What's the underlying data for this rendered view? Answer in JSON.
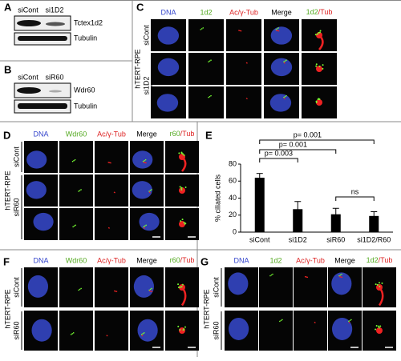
{
  "panels": {
    "A": {
      "label": "A",
      "lanes": [
        "siCont",
        "si1D2"
      ],
      "bands": [
        "Tctex1d2",
        "Tubulin"
      ]
    },
    "B": {
      "label": "B",
      "lanes": [
        "siCont",
        "siR60"
      ],
      "bands": [
        "Wdr60",
        "Tubulin"
      ]
    },
    "C": {
      "label": "C",
      "cell_line": "hTERT-RPE",
      "columns": [
        "DNA",
        "1d2",
        "Ac/γ-Tub",
        "Merge"
      ],
      "overlay": [
        "1d2",
        "/Tub"
      ],
      "rows": [
        "siCont",
        "si1D2"
      ]
    },
    "D": {
      "label": "D",
      "cell_line": "hTERT-RPE",
      "columns": [
        "DNA",
        "Wdr60",
        "Ac/γ-Tub",
        "Merge"
      ],
      "overlay": [
        "r60",
        "/Tub"
      ],
      "rows": [
        "siCont",
        "siR60"
      ]
    },
    "F": {
      "label": "F",
      "cell_line": "hTERT-RPE",
      "columns": [
        "DNA",
        "Wdr60",
        "Ac/γ-Tub",
        "Merge"
      ],
      "overlay": [
        "r60",
        "/Tub"
      ],
      "rows": [
        "siCont",
        "siR60"
      ]
    },
    "G": {
      "label": "G",
      "cell_line": "hTERT-RPE",
      "columns": [
        "DNA",
        "1d2",
        "Ac/γ-Tub",
        "Merge"
      ],
      "overlay": [
        "1d2",
        "/Tub"
      ],
      "rows": [
        "siCont",
        "siR60"
      ]
    }
  },
  "chart_data": {
    "type": "bar",
    "label": "E",
    "y_label": "% ciliated cells",
    "categories": [
      "siCont",
      "si1D2",
      "siR60",
      "si1D2/R60"
    ],
    "values": [
      64,
      27,
      21,
      19
    ],
    "errors": [
      5,
      9,
      7,
      5
    ],
    "color": "#000000",
    "ylim": [
      0,
      80
    ],
    "yticks": [
      0,
      20,
      40,
      60,
      80
    ],
    "annotations": [
      "p= 0.001",
      "p= 0.001",
      "p= 0.003",
      "ns"
    ]
  }
}
